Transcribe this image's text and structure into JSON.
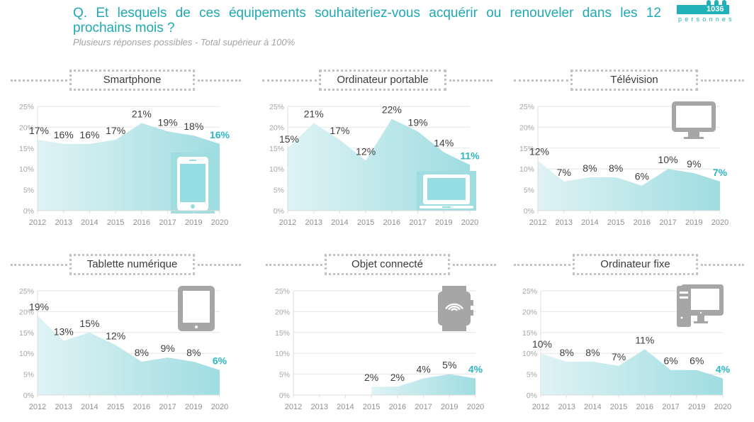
{
  "header": {
    "title": "Q. Et lesquels de ces équipements souhaiteriez-vous acquérir ou renouveler dans les 12 prochains mois ?",
    "subtitle": "Plusieurs réponses possibles - Total supérieur à 100%",
    "badge": {
      "count": "1036",
      "label": "personnes",
      "icon": "people-icon"
    }
  },
  "colors": {
    "accent": "#1fa9b5",
    "area_light": "#dff3f5",
    "area_dark": "#9fdde1",
    "icon_gray": "#a6a6a6",
    "last_label": "#2cb6c2"
  },
  "chart_data": [
    {
      "type": "area",
      "title": "Smartphone",
      "icon": "smartphone-icon",
      "categories": [
        "2012",
        "2013",
        "2014",
        "2015",
        "2016",
        "2017",
        "2019",
        "2020"
      ],
      "values": [
        17,
        16,
        16,
        17,
        21,
        19,
        18,
        16
      ],
      "labels": [
        "17%",
        "16%",
        "16%",
        "17%",
        "21%",
        "19%",
        "18%",
        "16%"
      ],
      "yticks": [
        "0%",
        "5%",
        "10%",
        "15%",
        "20%",
        "25%"
      ],
      "ylim": [
        0,
        25
      ],
      "grid": true
    },
    {
      "type": "area",
      "title": "Ordinateur portable",
      "icon": "laptop-icon",
      "categories": [
        "2012",
        "2013",
        "2014",
        "2015",
        "2016",
        "2017",
        "2019",
        "2020"
      ],
      "values": [
        15,
        21,
        17,
        12,
        22,
        19,
        14,
        11
      ],
      "labels": [
        "15%",
        "21%",
        "17%",
        "12%",
        "22%",
        "19%",
        "14%",
        "11%"
      ],
      "yticks": [
        "0%",
        "5%",
        "10%",
        "15%",
        "20%",
        "25%"
      ],
      "ylim": [
        0,
        25
      ],
      "grid": true
    },
    {
      "type": "area",
      "title": "Télévision",
      "icon": "television-icon",
      "categories": [
        "2012",
        "2013",
        "2014",
        "2015",
        "2016",
        "2017",
        "2019",
        "2020"
      ],
      "values": [
        12,
        7,
        8,
        8,
        6,
        10,
        9,
        7
      ],
      "labels": [
        "12%",
        "7%",
        "8%",
        "8%",
        "6%",
        "10%",
        "9%",
        "7%"
      ],
      "yticks": [
        "0%",
        "5%",
        "10%",
        "15%",
        "20%",
        "25%"
      ],
      "ylim": [
        0,
        25
      ],
      "grid": true
    },
    {
      "type": "area",
      "title": "Tablette numérique",
      "icon": "tablet-icon",
      "categories": [
        "2012",
        "2013",
        "2014",
        "2015",
        "2016",
        "2017",
        "2019",
        "2020"
      ],
      "values": [
        19,
        13,
        15,
        12,
        8,
        9,
        8,
        6
      ],
      "labels": [
        "19%",
        "13%",
        "15%",
        "12%",
        "8%",
        "9%",
        "8%",
        "6%"
      ],
      "yticks": [
        "0%",
        "5%",
        "10%",
        "15%",
        "20%",
        "25%"
      ],
      "ylim": [
        0,
        25
      ],
      "grid": true
    },
    {
      "type": "area",
      "title": "Objet connecté",
      "icon": "smartwatch-icon",
      "categories": [
        "2012",
        "2013",
        "2014",
        "2015",
        "2016",
        "2017",
        "2019",
        "2020"
      ],
      "values": [
        null,
        null,
        null,
        2,
        2,
        4,
        5,
        4
      ],
      "labels": [
        null,
        null,
        null,
        "2%",
        "2%",
        "4%",
        "5%",
        "4%"
      ],
      "yticks": [
        "0%",
        "5%",
        "10%",
        "15%",
        "20%",
        "25%"
      ],
      "ylim": [
        0,
        25
      ],
      "grid": true
    },
    {
      "type": "area",
      "title": "Ordinateur fixe",
      "icon": "desktop-computer-icon",
      "categories": [
        "2012",
        "2013",
        "2014",
        "2015",
        "2016",
        "2017",
        "2019",
        "2020"
      ],
      "values": [
        10,
        8,
        8,
        7,
        11,
        6,
        6,
        4
      ],
      "labels": [
        "10%",
        "8%",
        "8%",
        "7%",
        "11%",
        "6%",
        "6%",
        "4%"
      ],
      "yticks": [
        "0%",
        "5%",
        "10%",
        "15%",
        "20%",
        "25%"
      ],
      "ylim": [
        0,
        25
      ],
      "grid": true
    }
  ]
}
